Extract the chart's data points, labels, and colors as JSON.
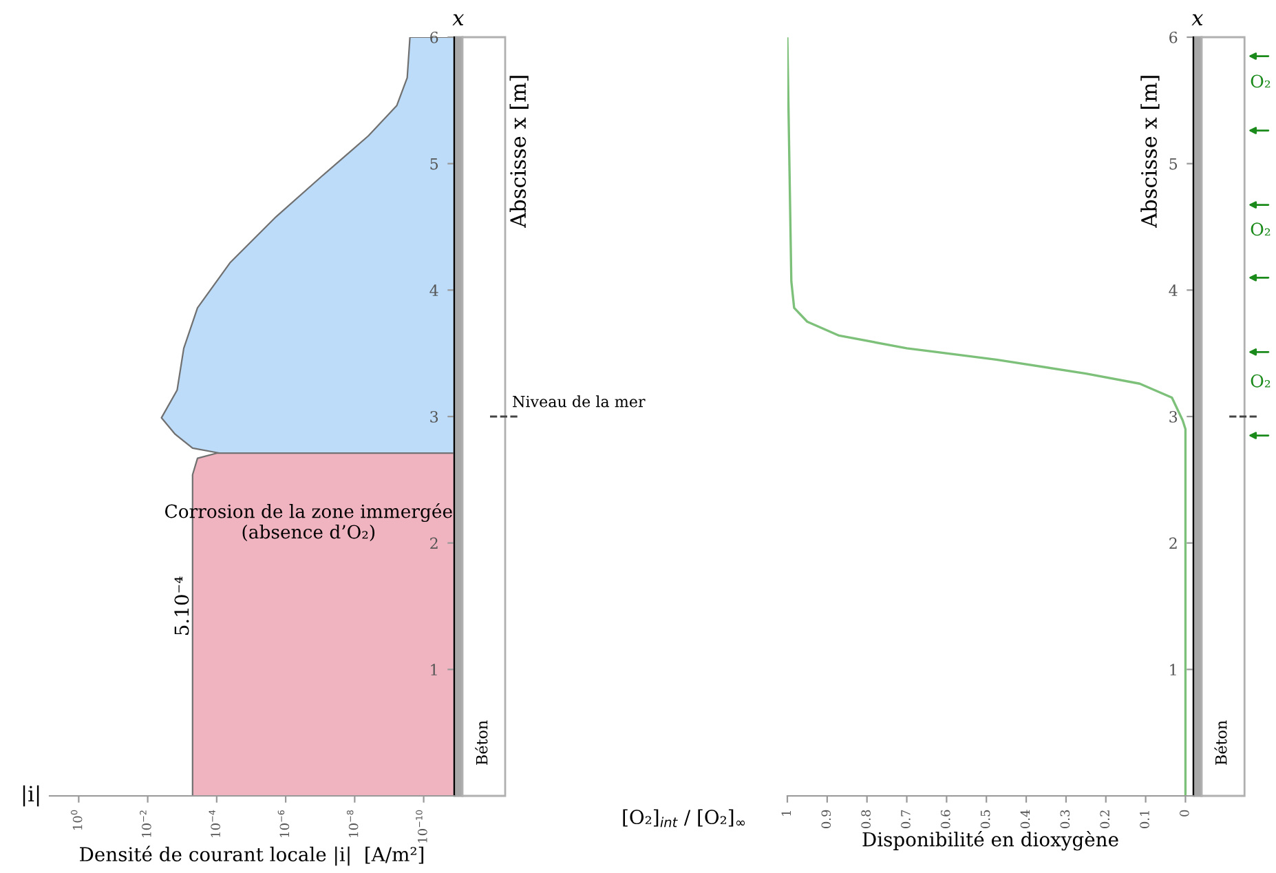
{
  "chart_data": [
    {
      "type": "area",
      "orientation": "horizontal",
      "log": "x",
      "xlabel": "Densité de courant locale |i|  [A/m²]",
      "ylabel": "Abscisse x [m]",
      "xlim": [
        7,
        1.3e-11
      ],
      "xticks": [
        {
          "value": 1,
          "label": "10$^{0}$"
        },
        {
          "value": 0.01,
          "label": "10$^{−2}$"
        },
        {
          "value": 0.0001,
          "label": "10$^{−4}$"
        },
        {
          "value": 1e-06,
          "label": "10$^{−6}$"
        },
        {
          "value": 1e-08,
          "label": "10$^{−8}$"
        },
        {
          "value": 1e-10,
          "label": "10$^{−10}$"
        }
      ],
      "ylim": [
        0,
        6
      ],
      "yticks": [
        1,
        2,
        3,
        4,
        5,
        6
      ],
      "series": [
        {
          "color": "#bcdcfa",
          "x": [
            2.71,
            2.75,
            2.86,
            2.99,
            3.21,
            3.54,
            3.86,
            4.22,
            4.58,
            4.9,
            5.22,
            5.46,
            5.68,
            6.0
          ],
          "values": [
            8e-05,
            0.0005,
            0.0016,
            0.004,
            0.0014,
            0.0009,
            0.00036,
            4e-05,
            1.9e-06,
            9e-08,
            4e-09,
            6e-10,
            3e-10,
            2.5e-10
          ]
        },
        {
          "color": "#f0b4c0",
          "x": [
            0,
            2.54,
            2.67,
            2.71
          ],
          "values": [
            0.0005,
            0.0005,
            0.00036,
            0.0001
          ]
        }
      ],
      "ref_lines": [
        {
          "axis": "y",
          "value": 3,
          "label": "Niveau de la mer",
          "line_style": "dashed"
        }
      ],
      "annotations": [
        "|i|",
        {
          "text": "5.10⁻⁴",
          "x": 0.0005,
          "y": 1.5
        },
        "Corrosion de la zone immergée\n(absence d’O₂)",
        "x",
        "Béton"
      ]
    },
    {
      "type": "line",
      "orientation": "horizontal",
      "xlabel": "Disponibilité en dioxygène",
      "ylabel": "Abscisse x [m]",
      "xlim": [
        1,
        -0.02
      ],
      "xticks": [
        1,
        0.9,
        0.8,
        0.7,
        0.6,
        0.5,
        0.4,
        0.3,
        0.2,
        0.1,
        0
      ],
      "ylim": [
        0,
        6
      ],
      "yticks": [
        1,
        2,
        3,
        4,
        5,
        6
      ],
      "series": [
        {
          "color": "#7dc07a",
          "x": [
            0,
            2.9,
            2.97,
            3.15,
            3.26,
            3.34,
            3.45,
            3.54,
            3.64,
            3.75,
            3.86,
            4.07,
            5.99
          ],
          "values": [
            0,
            0,
            0.007,
            0.034,
            0.115,
            0.25,
            0.475,
            0.7,
            0.87,
            0.95,
            0.983,
            0.99,
            1
          ]
        }
      ],
      "annotations": [
        "[O₂]$_{int}$ / [O₂]$_{∞}$",
        "x",
        "Béton",
        "O₂",
        "O₂",
        "O₂"
      ]
    }
  ]
}
